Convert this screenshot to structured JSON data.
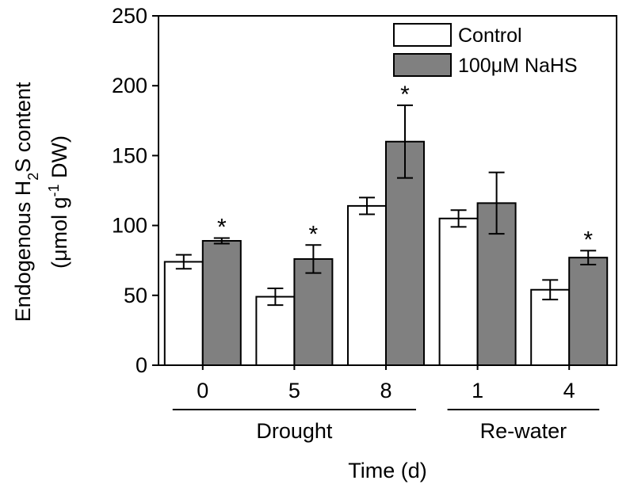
{
  "chart_data": {
    "type": "bar",
    "categories": [
      "0",
      "5",
      "8",
      "1",
      "4"
    ],
    "series": [
      {
        "name": "Control",
        "color": "#ffffff",
        "values": [
          74,
          49,
          114,
          105,
          54
        ],
        "errors": [
          5,
          6,
          6,
          6,
          7
        ],
        "significance": [
          "",
          "",
          "",
          "",
          ""
        ]
      },
      {
        "name": "100μM NaHS",
        "color": "#808080",
        "values": [
          89,
          76,
          160,
          116,
          77
        ],
        "errors": [
          2,
          10,
          26,
          22,
          5
        ],
        "significance": [
          "*",
          "*",
          "*",
          "",
          "*"
        ]
      }
    ],
    "ylim": [
      0,
      250
    ],
    "yticks": [
      0,
      50,
      100,
      150,
      200,
      250
    ],
    "ylabel_line1": "Endogenous H",
    "ylabel_sub": "2",
    "ylabel_line1_tail": "S content",
    "ylabel_line2_head": "(μmol g",
    "ylabel_sup": "-1",
    "ylabel_line2_tail": " DW)",
    "xlabel": "Time (d)",
    "groups": [
      {
        "label": "Drought",
        "categories": [
          "0",
          "5",
          "8"
        ]
      },
      {
        "label": "Re-water",
        "categories": [
          "1",
          "4"
        ]
      }
    ],
    "legend_position": "top-right"
  }
}
